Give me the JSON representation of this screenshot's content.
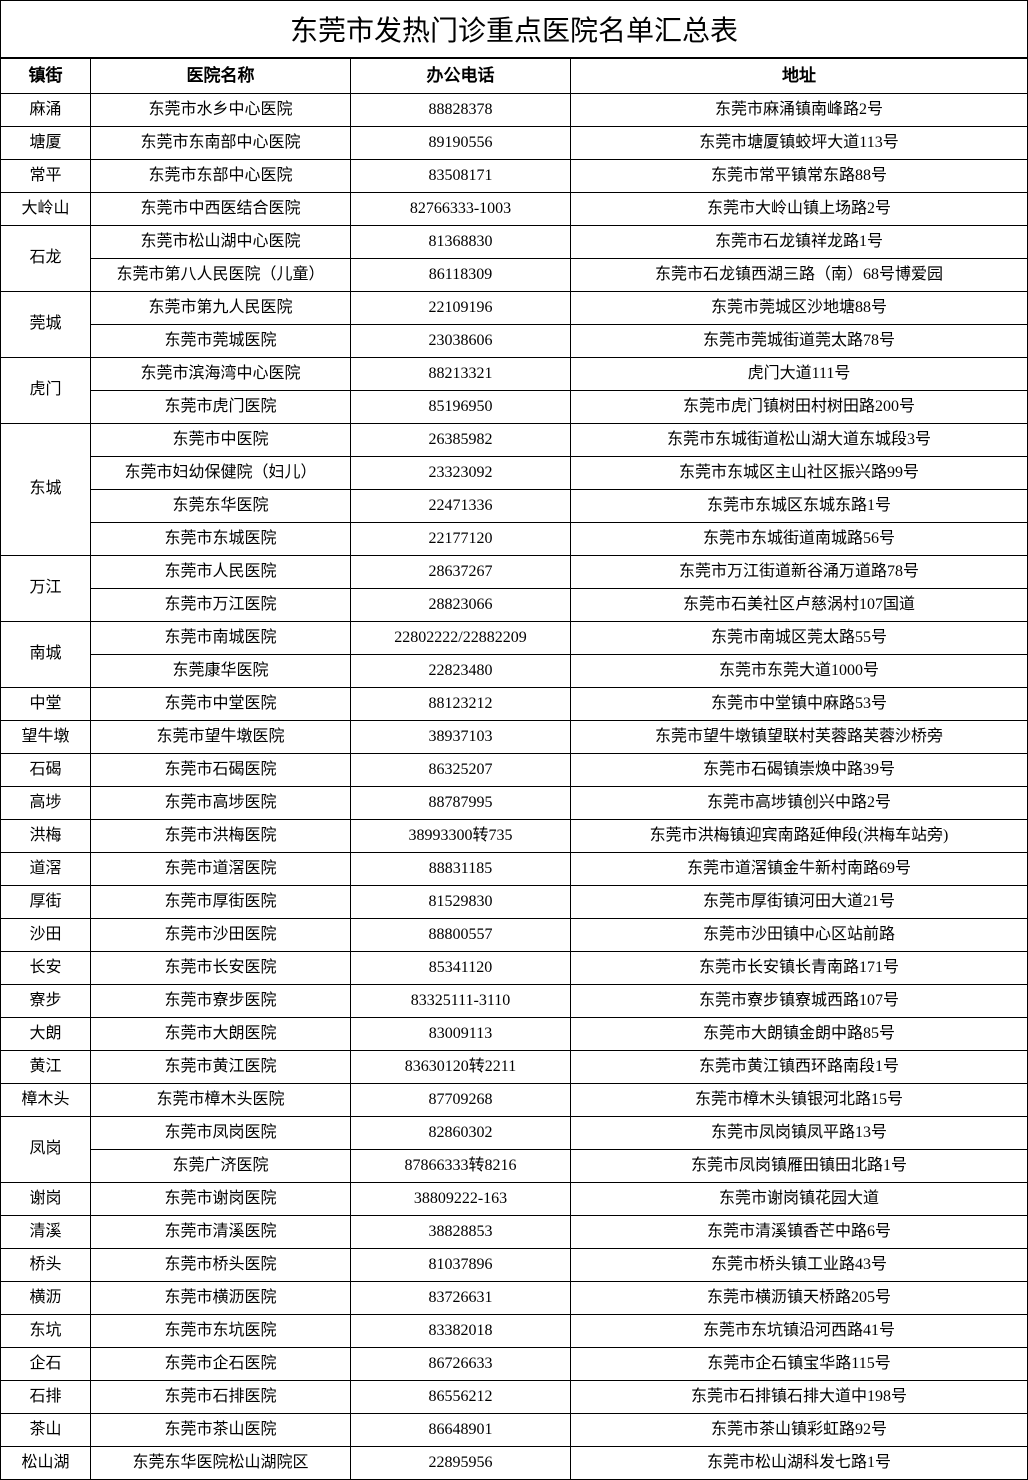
{
  "title": "东莞市发热门诊重点医院名单汇总表",
  "headers": {
    "town": "镇街",
    "hospital": "医院名称",
    "phone": "办公电话",
    "address": "地址"
  },
  "groups": [
    {
      "town": "麻涌",
      "rows": [
        {
          "hospital": "东莞市水乡中心医院",
          "phone": "88828378",
          "address": "东莞市麻涌镇南峰路2号"
        }
      ]
    },
    {
      "town": "塘厦",
      "rows": [
        {
          "hospital": "东莞市东南部中心医院",
          "phone": "89190556",
          "address": "东莞市塘厦镇蛟坪大道113号"
        }
      ]
    },
    {
      "town": "常平",
      "rows": [
        {
          "hospital": "东莞市东部中心医院",
          "phone": "83508171",
          "address": "东莞市常平镇常东路88号"
        }
      ]
    },
    {
      "town": "大岭山",
      "rows": [
        {
          "hospital": "东莞市中西医结合医院",
          "phone": "82766333-1003",
          "address": "东莞市大岭山镇上场路2号"
        }
      ]
    },
    {
      "town": "石龙",
      "rows": [
        {
          "hospital": "东莞市松山湖中心医院",
          "phone": "81368830",
          "address": "东莞市石龙镇祥龙路1号"
        },
        {
          "hospital": "东莞市第八人民医院（儿童）",
          "phone": "86118309",
          "address": "东莞市石龙镇西湖三路（南）68号博爱园"
        }
      ]
    },
    {
      "town": "莞城",
      "rows": [
        {
          "hospital": "东莞市第九人民医院",
          "phone": "22109196",
          "address": "东莞市莞城区沙地塘88号"
        },
        {
          "hospital": "东莞市莞城医院",
          "phone": "23038606",
          "address": "东莞市莞城街道莞太路78号"
        }
      ]
    },
    {
      "town": "虎门",
      "rows": [
        {
          "hospital": "东莞市滨海湾中心医院",
          "phone": "88213321",
          "address": "虎门大道111号"
        },
        {
          "hospital": "东莞市虎门医院",
          "phone": "85196950",
          "address": "东莞市虎门镇树田村树田路200号"
        }
      ]
    },
    {
      "town": "东城",
      "rows": [
        {
          "hospital": "东莞市中医院",
          "phone": "26385982",
          "address": "东莞市东城街道松山湖大道东城段3号"
        },
        {
          "hospital": "东莞市妇幼保健院（妇儿）",
          "phone": "23323092",
          "address": "东莞市东城区主山社区振兴路99号"
        },
        {
          "hospital": "东莞东华医院",
          "phone": "22471336",
          "address": "东莞市东城区东城东路1号"
        },
        {
          "hospital": "东莞市东城医院",
          "phone": "22177120",
          "address": "东莞市东城街道南城路56号"
        }
      ]
    },
    {
      "town": "万江",
      "rows": [
        {
          "hospital": "东莞市人民医院",
          "phone": "28637267",
          "address": "东莞市万江街道新谷涌万道路78号"
        },
        {
          "hospital": "东莞市万江医院",
          "phone": "28823066",
          "address": "东莞市石美社区卢慈涡村107国道"
        }
      ]
    },
    {
      "town": "南城",
      "rows": [
        {
          "hospital": "东莞市南城医院",
          "phone": "22802222/22882209",
          "address": "东莞市南城区莞太路55号"
        },
        {
          "hospital": "东莞康华医院",
          "phone": "22823480",
          "address": "东莞市东莞大道1000号"
        }
      ]
    },
    {
      "town": "中堂",
      "rows": [
        {
          "hospital": "东莞市中堂医院",
          "phone": "88123212",
          "address": "东莞市中堂镇中麻路53号"
        }
      ]
    },
    {
      "town": "望牛墩",
      "rows": [
        {
          "hospital": "东莞市望牛墩医院",
          "phone": "38937103",
          "address": "东莞市望牛墩镇望联村芙蓉路芙蓉沙桥旁"
        }
      ]
    },
    {
      "town": "石碣",
      "rows": [
        {
          "hospital": "东莞市石碣医院",
          "phone": "86325207",
          "address": "东莞市石碣镇崇焕中路39号"
        }
      ]
    },
    {
      "town": "高埗",
      "rows": [
        {
          "hospital": "东莞市高埗医院",
          "phone": "88787995",
          "address": "东莞市高埗镇创兴中路2号"
        }
      ]
    },
    {
      "town": "洪梅",
      "rows": [
        {
          "hospital": "东莞市洪梅医院",
          "phone": "38993300转735",
          "address": "东莞市洪梅镇迎宾南路延伸段(洪梅车站旁)"
        }
      ]
    },
    {
      "town": "道滘",
      "rows": [
        {
          "hospital": "东莞市道滘医院",
          "phone": "88831185",
          "address": "东莞市道滘镇金牛新村南路69号"
        }
      ]
    },
    {
      "town": "厚街",
      "rows": [
        {
          "hospital": "东莞市厚街医院",
          "phone": "81529830",
          "address": "东莞市厚街镇河田大道21号"
        }
      ]
    },
    {
      "town": "沙田",
      "rows": [
        {
          "hospital": "东莞市沙田医院",
          "phone": "88800557",
          "address": "东莞市沙田镇中心区站前路"
        }
      ]
    },
    {
      "town": "长安",
      "rows": [
        {
          "hospital": "东莞市长安医院",
          "phone": "85341120",
          "address": "东莞市长安镇长青南路171号"
        }
      ]
    },
    {
      "town": "寮步",
      "rows": [
        {
          "hospital": "东莞市寮步医院",
          "phone": "83325111-3110",
          "address": "东莞市寮步镇寮城西路107号"
        }
      ]
    },
    {
      "town": "大朗",
      "rows": [
        {
          "hospital": "东莞市大朗医院",
          "phone": "83009113",
          "address": "东莞市大朗镇金朗中路85号"
        }
      ]
    },
    {
      "town": "黄江",
      "rows": [
        {
          "hospital": "东莞市黄江医院",
          "phone": "83630120转2211",
          "address": "东莞市黄江镇西环路南段1号"
        }
      ]
    },
    {
      "town": "樟木头",
      "rows": [
        {
          "hospital": "东莞市樟木头医院",
          "phone": "87709268",
          "address": "东莞市樟木头镇银河北路15号"
        }
      ]
    },
    {
      "town": "凤岗",
      "rows": [
        {
          "hospital": "东莞市凤岗医院",
          "phone": "82860302",
          "address": "东莞市凤岗镇凤平路13号"
        },
        {
          "hospital": "东莞广济医院",
          "phone": "87866333转8216",
          "address": "东莞市凤岗镇雁田镇田北路1号"
        }
      ]
    },
    {
      "town": "谢岗",
      "rows": [
        {
          "hospital": "东莞市谢岗医院",
          "phone": "38809222-163",
          "address": "东莞市谢岗镇花园大道"
        }
      ]
    },
    {
      "town": "清溪",
      "rows": [
        {
          "hospital": "东莞市清溪医院",
          "phone": "38828853",
          "address": "东莞市清溪镇香芒中路6号"
        }
      ]
    },
    {
      "town": "桥头",
      "rows": [
        {
          "hospital": "东莞市桥头医院",
          "phone": "81037896",
          "address": "东莞市桥头镇工业路43号"
        }
      ]
    },
    {
      "town": "横沥",
      "rows": [
        {
          "hospital": "东莞市横沥医院",
          "phone": "83726631",
          "address": "东莞市横沥镇天桥路205号"
        }
      ]
    },
    {
      "town": "东坑",
      "rows": [
        {
          "hospital": "东莞市东坑医院",
          "phone": "83382018",
          "address": "东莞市东坑镇沿河西路41号"
        }
      ]
    },
    {
      "town": "企石",
      "rows": [
        {
          "hospital": "东莞市企石医院",
          "phone": "86726633",
          "address": "东莞市企石镇宝华路115号"
        }
      ]
    },
    {
      "town": "石排",
      "rows": [
        {
          "hospital": "东莞市石排医院",
          "phone": "86556212",
          "address": "东莞市石排镇石排大道中198号"
        }
      ]
    },
    {
      "town": "茶山",
      "rows": [
        {
          "hospital": "东莞市茶山医院",
          "phone": "86648901",
          "address": "东莞市茶山镇彩虹路92号"
        }
      ]
    },
    {
      "town": "松山湖",
      "rows": [
        {
          "hospital": "东莞东华医院松山湖院区",
          "phone": "22895956",
          "address": "东莞市松山湖科发七路1号"
        }
      ]
    }
  ],
  "styling": {
    "title_fontsize": 28,
    "header_fontsize": 17,
    "cell_fontsize": 16,
    "border_color": "#000000",
    "background_color": "#ffffff",
    "font_family": "SimSun",
    "col_widths": {
      "town": 90,
      "hospital": 260,
      "phone": 220
    }
  }
}
